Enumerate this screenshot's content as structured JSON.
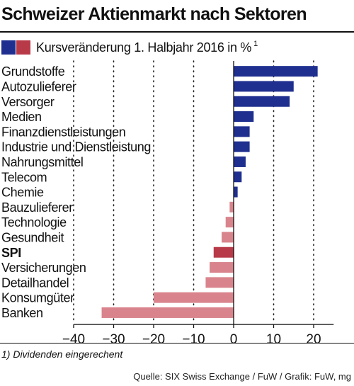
{
  "header": {
    "title": "Schweizer Aktienmarkt nach Sektoren",
    "legend_label": "Kursveränderung 1. Halbjahr 2016 in %",
    "legend_sup": "1"
  },
  "footer": {
    "footnote": "1) Dividenden eingerechent",
    "source": "Quelle: SIX Swiss Exchange / FuW / Grafik: FuW, mg"
  },
  "colors": {
    "positive": "#1f2f8f",
    "index": "#b83a48",
    "negative": "#d9848c"
  },
  "chart_data": {
    "type": "bar",
    "orientation": "horizontal",
    "categories": [
      "Grundstoffe",
      "Autozulieferer",
      "Versorger",
      "Medien",
      "Finanzdienstleistungen",
      "Industrie und Dienstleistung",
      "Nahrungsmittel",
      "Telecom",
      "Chemie",
      "Bauzulieferer",
      "Technologie",
      "Gesundheit",
      "SPI",
      "Versicherungen",
      "Detailhandel",
      "Konsumgüter",
      "Banken"
    ],
    "values": [
      21,
      15,
      14,
      5,
      4,
      4,
      3,
      2,
      1,
      -1,
      -2,
      -3,
      -5,
      -6,
      -7,
      -20,
      -33
    ],
    "highlight": "SPI",
    "xlim": [
      -40,
      25
    ],
    "xticks": [
      -40,
      -30,
      -20,
      -10,
      0,
      10,
      20
    ],
    "xtick_labels": [
      "−40",
      "−30",
      "−20",
      "−10",
      "0",
      "10",
      "20"
    ],
    "grid": "dotted vertical lines",
    "legend_position": "top-left"
  }
}
